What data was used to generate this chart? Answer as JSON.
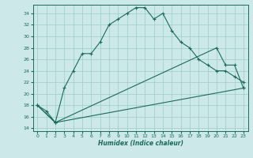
{
  "xlabel": "Humidex (Indice chaleur)",
  "bg_color": "#cce8e8",
  "grid_color": "#99cccc",
  "line_color": "#1a6b5a",
  "xlim": [
    -0.5,
    23.5
  ],
  "ylim": [
    13.5,
    35.5
  ],
  "xticks": [
    0,
    1,
    2,
    3,
    4,
    5,
    6,
    7,
    8,
    9,
    10,
    11,
    12,
    13,
    14,
    15,
    16,
    17,
    18,
    19,
    20,
    21,
    22,
    23
  ],
  "yticks": [
    14,
    16,
    18,
    20,
    22,
    24,
    26,
    28,
    30,
    32,
    34
  ],
  "main_line": [
    [
      0,
      18
    ],
    [
      1,
      17
    ],
    [
      2,
      15
    ],
    [
      3,
      21
    ],
    [
      4,
      24
    ],
    [
      5,
      27
    ],
    [
      6,
      27
    ],
    [
      7,
      29
    ],
    [
      8,
      32
    ],
    [
      9,
      33
    ],
    [
      10,
      34
    ],
    [
      11,
      35
    ],
    [
      12,
      35
    ],
    [
      13,
      33
    ],
    [
      14,
      34
    ],
    [
      15,
      31
    ],
    [
      16,
      29
    ],
    [
      17,
      28
    ],
    [
      18,
      26
    ],
    [
      19,
      25
    ],
    [
      20,
      24
    ],
    [
      21,
      24
    ],
    [
      22,
      23
    ],
    [
      23,
      22
    ]
  ],
  "low_line": [
    [
      0,
      18
    ],
    [
      2,
      15
    ],
    [
      23,
      21
    ]
  ],
  "high_line": [
    [
      0,
      18
    ],
    [
      2,
      15
    ],
    [
      20,
      28
    ],
    [
      21,
      25
    ],
    [
      22,
      25
    ],
    [
      23,
      21
    ]
  ]
}
